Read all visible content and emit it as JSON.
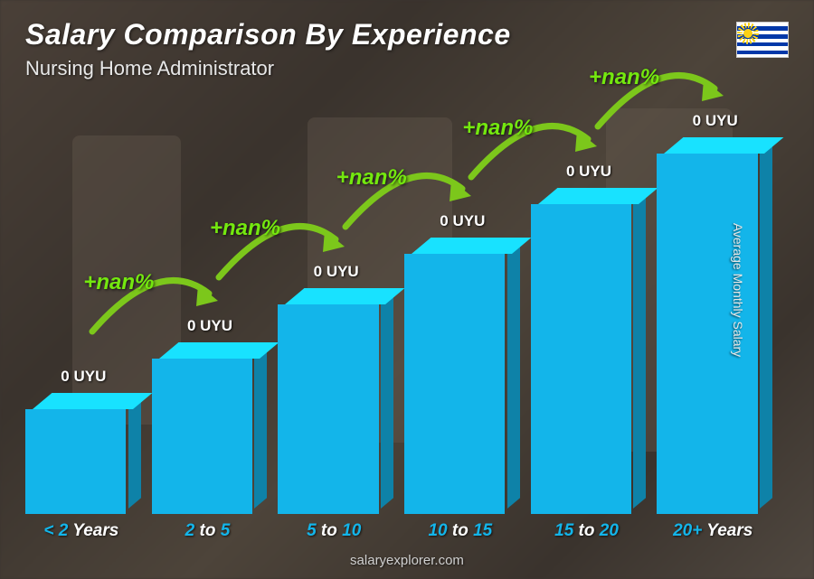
{
  "header": {
    "title": "Salary Comparison By Experience",
    "title_fontsize": 32,
    "subtitle": "Nursing Home Administrator",
    "subtitle_fontsize": 22,
    "flag_country": "Uruguay",
    "flag_stripe_color": "#0038a8",
    "flag_sun_color": "#fcd116"
  },
  "chart": {
    "type": "bar-3d",
    "bar_color": "#13b5ea",
    "bar_top_color": "#5ad3f5",
    "bar_side_color": "#0e8cb5",
    "background_tone": "#3a3530",
    "arrow_color": "#7cc71b",
    "increase_color": "#74e80f",
    "value_color": "#ffffff",
    "value_fontsize": 17,
    "increase_fontsize": 24,
    "xlabel_fontsize": 19,
    "currency": "UYU",
    "bars": [
      {
        "category_html": "< <span class='num'>2</span> <span class='txt'>Years</span>",
        "value_label": "0 UYU",
        "height_pct": 25,
        "increase_label": null
      },
      {
        "category_html": "<span class='num'>2</span> <span class='txt'>to</span> <span class='num'>5</span>",
        "value_label": "0 UYU",
        "height_pct": 37,
        "increase_label": "+nan%"
      },
      {
        "category_html": "<span class='num'>5</span> <span class='txt'>to</span> <span class='num'>10</span>",
        "value_label": "0 UYU",
        "height_pct": 50,
        "increase_label": "+nan%"
      },
      {
        "category_html": "<span class='num'>10</span> <span class='txt'>to</span> <span class='num'>15</span>",
        "value_label": "0 UYU",
        "height_pct": 62,
        "increase_label": "+nan%"
      },
      {
        "category_html": "<span class='num'>15</span> <span class='txt'>to</span> <span class='num'>20</span>",
        "value_label": "0 UYU",
        "height_pct": 74,
        "increase_label": "+nan%"
      },
      {
        "category_html": "<span class='num'>20+</span> <span class='txt'>Years</span>",
        "value_label": "0 UYU",
        "height_pct": 86,
        "increase_label": "+nan%"
      }
    ]
  },
  "y_axis_label": "Average Monthly Salary",
  "footer": "salaryexplorer.com"
}
